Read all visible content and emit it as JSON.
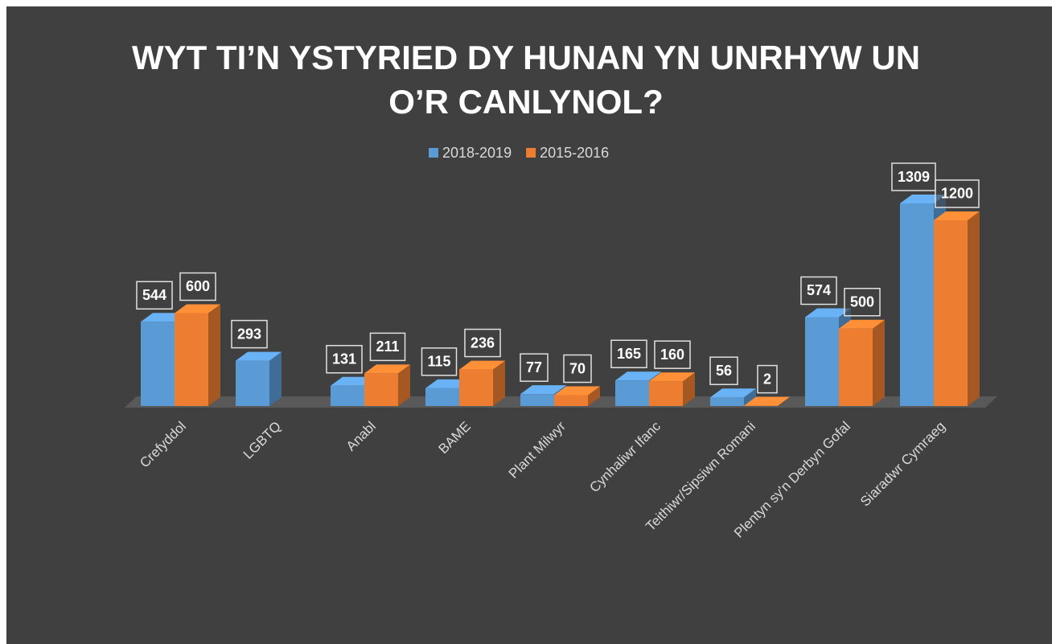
{
  "chart_data": {
    "type": "bar3d",
    "title": [
      "WYT TI’N YSTYRIED DY HUNAN YN UNRHYW UN",
      "O’R CANLYNOL?"
    ],
    "categories": [
      "Crefyddol",
      "LGBTQ",
      "Anabl",
      "BAME",
      "Plant Milwyr",
      "Cynhaliwr Ifanc",
      "Teithiwr/Sipsiwn Romani",
      "Plentyn sy'n Derbyn Gofal",
      "Siaradwr Cymraeg"
    ],
    "series": [
      {
        "name": "2018-2019",
        "color": "#5b9bd5",
        "values": [
          544,
          293,
          131,
          115,
          77,
          165,
          56,
          574,
          1309
        ]
      },
      {
        "name": "2015-2016",
        "color": "#ed7d31",
        "values": [
          600,
          null,
          211,
          236,
          70,
          160,
          2,
          500,
          1200
        ]
      }
    ],
    "legend": "top"
  }
}
